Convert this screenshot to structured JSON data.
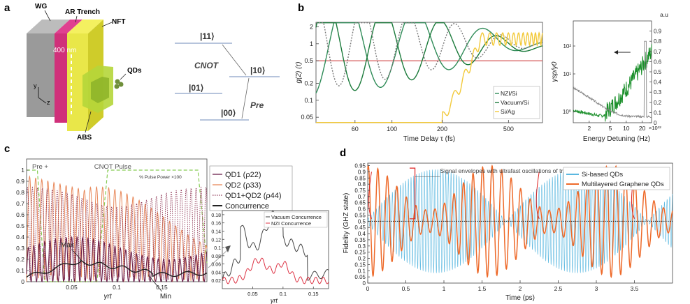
{
  "panels": {
    "a": {
      "label": "a",
      "device_labels": {
        "wg": "WG",
        "ar_trench": "AR Trench",
        "nft": "NFT",
        "qds": "QDs",
        "abs": "ABS",
        "dim": "400 nm",
        "y": "y",
        "z": "z"
      },
      "levels": {
        "l11": "|11⟩",
        "l10": "|10⟩",
        "l01": "|01⟩",
        "l00": "|00⟩",
        "cnot": "CNOT",
        "pre": "Pre"
      }
    },
    "b": {
      "label": "b"
    },
    "c": {
      "label": "c"
    },
    "d": {
      "label": "d"
    }
  },
  "chart_data": [
    {
      "id": "b-left",
      "type": "line",
      "xlabel": "Time Delay τ (fs)",
      "ylabel": "g(2) (τ)",
      "xscale": "log",
      "yscale": "log",
      "xticks": [
        60,
        100,
        200,
        500
      ],
      "yticks": [
        0.05,
        0.1,
        0.2,
        0.5,
        1,
        2
      ],
      "xlim": [
        35,
        800
      ],
      "ylim": [
        0.04,
        2.4
      ],
      "legend": [
        "NZI/Si",
        "Vacuum/Si",
        "Si/Ag"
      ],
      "legend_position": "bottom-right",
      "colors": {
        "nzi": "#2e8b57",
        "vacuum": "#1a7a3a",
        "siag": "#f2c93a",
        "ref": "#cc3333"
      }
    },
    {
      "id": "b-right",
      "type": "line",
      "xlabel": "Energy Detuning (Hz)",
      "ylabel": "γsp/γ0",
      "right_unit": "a.u",
      "x_multiplier": "×10¹²",
      "xticks": [
        2,
        5,
        10,
        20
      ],
      "left_yticks": [
        "10⁰",
        "10¹",
        "10²"
      ],
      "right_yticks": [
        0,
        0.1,
        0.2,
        0.3,
        0.4,
        0.5,
        0.6,
        0.7,
        0.8,
        0.9
      ],
      "colors": {
        "spectrum": "#1a8f2a",
        "gray": "#888888"
      }
    },
    {
      "id": "c-main",
      "type": "line",
      "xlabel": "γrt",
      "xticks": [
        0.05,
        0.1,
        0.15
      ],
      "yticks": [
        0,
        0.1,
        0.2,
        0.3,
        0.4,
        0.5,
        0.6,
        0.7,
        0.8,
        0.9,
        1
      ],
      "xlim": [
        0,
        0.2
      ],
      "ylim": [
        0,
        1.1
      ],
      "annotations": {
        "pre": "Pre +",
        "cnot": "CNOT Pulse",
        "pulse_power": "% Pulse Power ×100",
        "max": "Max",
        "min": "Min"
      },
      "legend": [
        "QD1 (ρ22)",
        "QD2 (ρ33)",
        "QD1+QD2 (ρ44)",
        "Concurrence"
      ],
      "legend_position": "upper-right",
      "colors": {
        "qd1": "#6b1f4a",
        "qd2": "#e8885a",
        "qd12": "#8b3050",
        "conc": "#222222",
        "pulse": "#88cc55"
      }
    },
    {
      "id": "c-inset",
      "type": "line",
      "xlabel": "γrt",
      "xticks": [
        0.05,
        0.1,
        0.15
      ],
      "yticks": [
        0.02,
        0.04,
        0.06,
        0.08,
        0.1,
        0.12,
        0.14,
        0.16,
        0.18
      ],
      "xlim": [
        0,
        0.175
      ],
      "ylim": [
        0,
        0.19
      ],
      "legend": [
        "Vacuum Concurrence",
        "NZI Concurrence"
      ],
      "legend_position": "top-right",
      "colors": {
        "vac": "#444444",
        "nzi": "#dd3344"
      }
    },
    {
      "id": "d",
      "type": "line",
      "xlabel": "Time (ps)",
      "ylabel": "Fidelity (GHZ state)",
      "xticks": [
        0,
        0.5,
        1,
        1.5,
        2,
        2.5,
        3,
        3.5
      ],
      "yticks": [
        0,
        0.05,
        0.1,
        0.15,
        0.2,
        0.25,
        0.3,
        0.35,
        0.4,
        0.45,
        0.5,
        0.55,
        0.6,
        0.65,
        0.7,
        0.75,
        0.8,
        0.85,
        0.9,
        0.95
      ],
      "xlim": [
        0,
        4
      ],
      "ylim": [
        0,
        0.97
      ],
      "threshold": 0.5,
      "annotation": "Signal envelopes with ultrafast oscillations of tripartite entangled",
      "legend": [
        "Si-based QDs",
        "Multilayered Graphene QDs"
      ],
      "legend_position": "top-right",
      "colors": {
        "si": "#5bb8e0",
        "graphene": "#ee6a2a",
        "threshold": "#222222",
        "annot": "#dd2222"
      }
    }
  ]
}
